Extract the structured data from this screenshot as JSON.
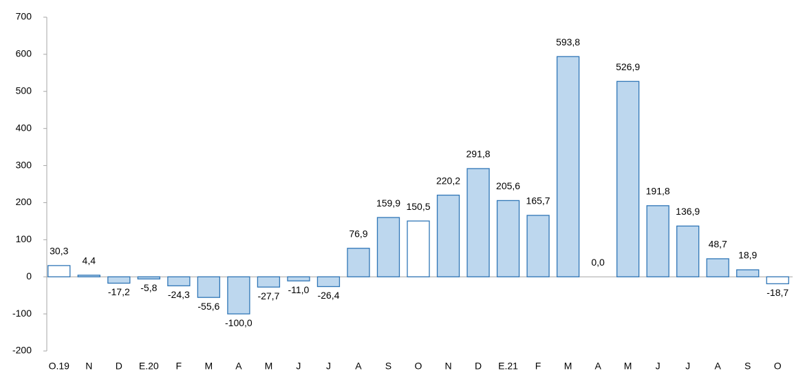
{
  "chart_data": {
    "type": "bar",
    "categories": [
      "O.19",
      "N",
      "D",
      "E.20",
      "F",
      "M",
      "A",
      "M",
      "J",
      "J",
      "A",
      "S",
      "O",
      "N",
      "D",
      "E.21",
      "F",
      "M",
      "A",
      "M",
      "J",
      "J",
      "A",
      "S",
      "O"
    ],
    "values": [
      30.3,
      4.4,
      -17.2,
      -5.8,
      -24.3,
      -55.6,
      -100.0,
      -27.7,
      -11.0,
      -26.4,
      76.9,
      159.9,
      150.5,
      220.2,
      291.8,
      205.6,
      165.7,
      593.8,
      0.0,
      526.9,
      191.8,
      136.9,
      48.7,
      18.9,
      -18.7
    ],
    "value_labels": [
      "30,3",
      "4,4",
      "-17,2",
      "-5,8",
      "-24,3",
      "-55,6",
      "-100,0",
      "-27,7",
      "-11,0",
      "-26,4",
      "76,9",
      "159,9",
      "150,5",
      "220,2",
      "291,8",
      "205,6",
      "165,7",
      "593,8",
      "0,0",
      "526,9",
      "191,8",
      "136,9",
      "48,7",
      "18,9",
      "-18,7"
    ],
    "colors": [
      "#ffffff",
      "#bdd7ee",
      "#bdd7ee",
      "#bdd7ee",
      "#bdd7ee",
      "#bdd7ee",
      "#bdd7ee",
      "#bdd7ee",
      "#bdd7ee",
      "#bdd7ee",
      "#bdd7ee",
      "#bdd7ee",
      "#ffffff",
      "#bdd7ee",
      "#bdd7ee",
      "#bdd7ee",
      "#bdd7ee",
      "#bdd7ee",
      "#bdd7ee",
      "#bdd7ee",
      "#bdd7ee",
      "#bdd7ee",
      "#bdd7ee",
      "#bdd7ee",
      "#ffffff"
    ],
    "edge_color": "#2e75b6",
    "ylim": [
      -200,
      700
    ],
    "yticks": [
      -200,
      -100,
      0,
      100,
      200,
      300,
      400,
      500,
      600,
      700
    ],
    "grid": false
  }
}
